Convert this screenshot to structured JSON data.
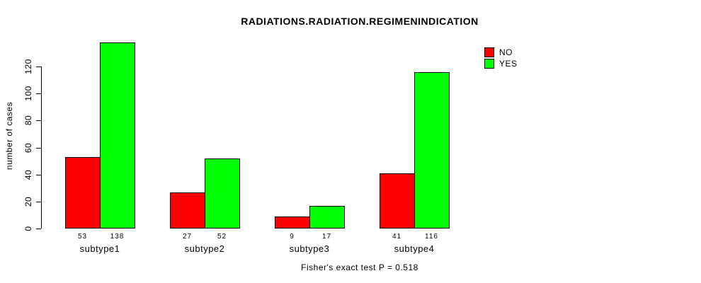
{
  "title": "RADIATIONS.RADIATION.REGIMENINDICATION",
  "footer_note": "Fisher's exact test P = 0.518",
  "legend": {
    "items": [
      {
        "label": "NO",
        "color": "#ff0000"
      },
      {
        "label": "YES",
        "color": "#00ff00"
      }
    ]
  },
  "chart_data": {
    "type": "bar",
    "title": "RADIATIONS.RADIATION.REGIMENINDICATION",
    "categories": [
      "subtype1",
      "subtype2",
      "subtype3",
      "subtype4"
    ],
    "series": [
      {
        "name": "NO",
        "color": "#ff0000",
        "values": [
          53,
          27,
          9,
          41
        ]
      },
      {
        "name": "YES",
        "color": "#00ff00",
        "values": [
          138,
          52,
          17,
          116
        ]
      }
    ],
    "bar_value_labels": [
      [
        "53",
        "138"
      ],
      [
        "27",
        "52"
      ],
      [
        "9",
        "17"
      ],
      [
        "41",
        "116"
      ]
    ],
    "xlabel": "",
    "ylabel": "number of cases",
    "yticks": [
      0,
      20,
      40,
      60,
      80,
      100,
      120
    ],
    "ylim": [
      0,
      140
    ],
    "grid": false,
    "legend_position": "top-right",
    "annotation": "Fisher's exact test P = 0.518"
  }
}
